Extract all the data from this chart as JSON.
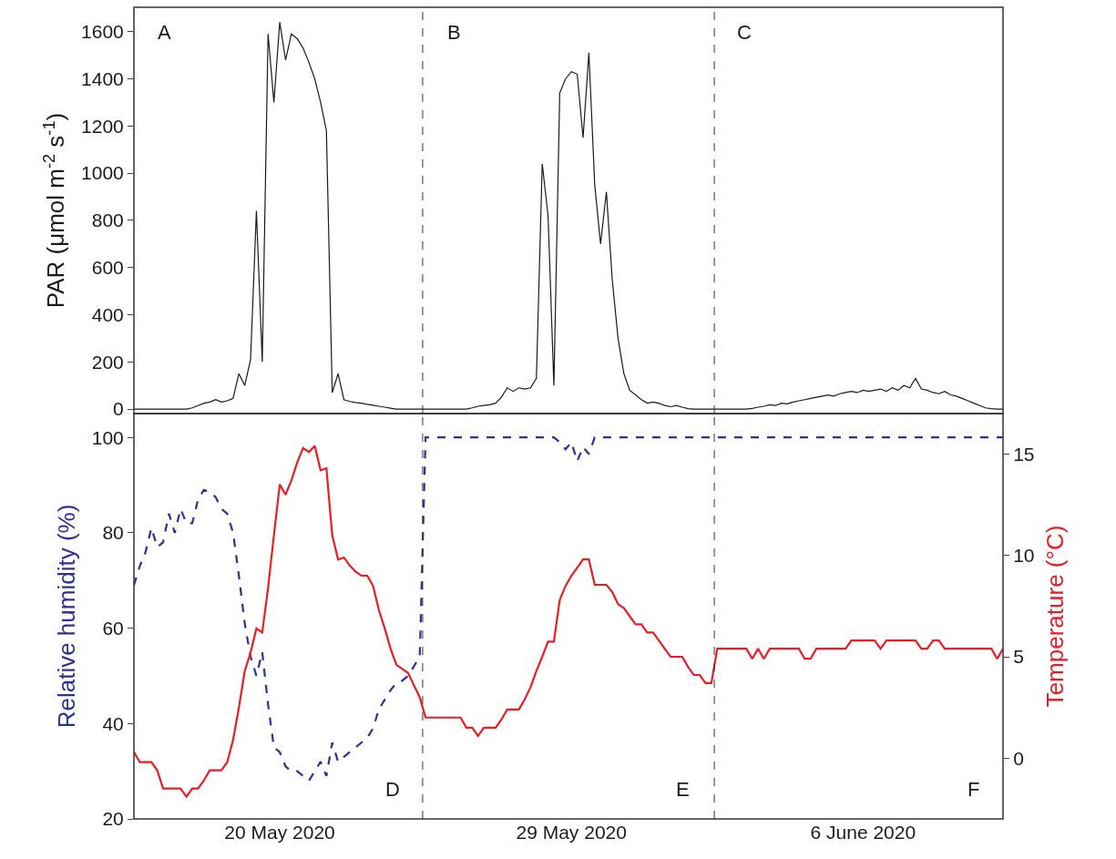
{
  "chart_data": [
    {
      "type": "line",
      "ylabel": "PAR (μmol m$^{-2}$ s$^{-1}$)",
      "annotations": [
        "A",
        "B",
        "C"
      ],
      "tick_labels": "y",
      "ylim": [
        -19,
        1703
      ],
      "yticks": [
        0,
        200,
        400,
        600,
        800,
        1000,
        1200,
        1400,
        1600
      ],
      "categories": [
        null,
        null,
        null,
        null,
        null,
        null,
        null,
        null,
        null,
        null,
        null,
        null,
        null,
        null,
        null,
        null,
        null,
        null,
        null,
        null,
        null,
        null,
        null,
        null,
        null,
        null,
        null,
        null,
        null,
        null,
        null,
        null,
        null,
        null,
        null,
        null,
        null,
        null,
        null,
        null,
        null,
        null,
        null,
        null,
        null,
        null,
        null,
        null,
        null,
        null,
        null,
        null,
        null,
        null,
        null,
        null,
        null,
        null,
        null,
        null,
        null,
        null,
        null,
        null,
        null,
        null,
        null,
        null,
        null,
        null,
        null,
        null,
        null,
        null,
        null,
        null,
        null,
        null,
        null,
        null,
        null,
        null,
        null,
        null,
        null,
        null,
        null,
        null,
        null,
        null,
        null,
        null,
        null,
        null,
        null,
        null,
        null,
        null,
        null,
        null,
        null,
        null,
        null,
        null,
        null,
        null,
        null,
        null,
        null,
        null,
        null,
        null,
        null,
        null,
        null,
        null,
        null,
        null,
        null,
        null,
        null,
        null,
        null,
        null,
        null,
        null,
        null,
        null,
        null,
        null,
        null,
        null,
        null,
        null,
        null,
        null,
        null,
        null,
        null,
        null,
        null,
        null,
        null,
        null,
        null,
        null,
        null,
        null,
        null,
        null
      ],
      "series": [
        {
          "color": "#1a1a1a",
          "line_style": "solid",
          "values": [
            0,
            0,
            0,
            0,
            0,
            0,
            0,
            0,
            0,
            0,
            5,
            15,
            25,
            30,
            40,
            30,
            35,
            45,
            150,
            100,
            210,
            840,
            200,
            1590,
            1300,
            1640,
            1480,
            1590,
            1570,
            1530,
            1470,
            1400,
            1300,
            1180,
            70,
            150,
            40,
            32,
            28,
            25,
            20,
            16,
            12,
            8,
            4,
            0,
            0,
            0,
            0,
            0,
            0,
            0,
            0,
            0,
            0,
            0,
            0,
            0,
            5,
            12,
            15,
            18,
            25,
            50,
            90,
            75,
            90,
            85,
            90,
            130,
            1040,
            820,
            100,
            1340,
            1400,
            1430,
            1420,
            1150,
            1510,
            950,
            700,
            920,
            550,
            300,
            150,
            80,
            60,
            40,
            25,
            30,
            25,
            15,
            10,
            15,
            8,
            2,
            0,
            0,
            0,
            0,
            0,
            0,
            0,
            0,
            0,
            0,
            3,
            8,
            12,
            18,
            15,
            25,
            22,
            30,
            35,
            40,
            45,
            50,
            55,
            60,
            55,
            65,
            70,
            75,
            70,
            80,
            75,
            80,
            85,
            75,
            90,
            80,
            100,
            90,
            130,
            85,
            80,
            70,
            65,
            75,
            60,
            55,
            45,
            35,
            25,
            15,
            5,
            2,
            0,
            0
          ]
        }
      ]
    },
    {
      "type": "line",
      "ylabel": "Relative humidity (%)",
      "y2label": "Temperature (°C)",
      "annotations": [
        "D",
        "E",
        "F"
      ],
      "ylim": [
        20,
        105
      ],
      "yticks": [
        20,
        40,
        60,
        80,
        100
      ],
      "y2lim": [
        -3,
        17
      ],
      "y2ticks": [
        0,
        5,
        10,
        15
      ],
      "categories": [
        null,
        null,
        null,
        null,
        null,
        null,
        null,
        null,
        null,
        null,
        null,
        null,
        null,
        null,
        null,
        null,
        null,
        null,
        null,
        null,
        null,
        null,
        null,
        null,
        null,
        "20 May 2020",
        null,
        null,
        null,
        null,
        null,
        null,
        null,
        null,
        null,
        null,
        null,
        null,
        null,
        null,
        null,
        null,
        null,
        null,
        null,
        null,
        null,
        null,
        null,
        null,
        null,
        null,
        null,
        null,
        null,
        null,
        null,
        null,
        null,
        null,
        null,
        null,
        null,
        null,
        null,
        null,
        null,
        null,
        null,
        null,
        null,
        null,
        null,
        null,
        null,
        "29 May 2020",
        null,
        null,
        null,
        null,
        null,
        null,
        null,
        null,
        null,
        null,
        null,
        null,
        null,
        null,
        null,
        null,
        null,
        null,
        null,
        null,
        null,
        null,
        null,
        null,
        null,
        null,
        null,
        null,
        null,
        null,
        null,
        null,
        null,
        null,
        null,
        null,
        null,
        null,
        null,
        null,
        null,
        null,
        null,
        null,
        null,
        null,
        null,
        null,
        null,
        "6 June 2020",
        null,
        null,
        null,
        null,
        null,
        null,
        null,
        null,
        null,
        null,
        null,
        null,
        null,
        null,
        null,
        null,
        null,
        null,
        null,
        null,
        null,
        null,
        null,
        null
      ],
      "series": [
        {
          "color": "#2e3192",
          "line_style": "dashed",
          "values": [
            69,
            73,
            76,
            81,
            77,
            78,
            84,
            80,
            85,
            82,
            82,
            87,
            89,
            88.5,
            87.5,
            85,
            84,
            80,
            71,
            61,
            54,
            50,
            55,
            44,
            35,
            34,
            31,
            30,
            30,
            29,
            28,
            30,
            32,
            29,
            36,
            32,
            33,
            34,
            35,
            36,
            37,
            39,
            43,
            45,
            47,
            48.5,
            49,
            50,
            52,
            54,
            100,
            100,
            100,
            100,
            100,
            100,
            100,
            100,
            100,
            100,
            100,
            100,
            100,
            100,
            100,
            100,
            100,
            100,
            100,
            100,
            100,
            100,
            100,
            99,
            97.5,
            99,
            95,
            98,
            96.5,
            100,
            100,
            100,
            100,
            100,
            100,
            100,
            100,
            100,
            100,
            100,
            100,
            100,
            100,
            100,
            100,
            100,
            100,
            100,
            100,
            100,
            100,
            100,
            100,
            100,
            100,
            100,
            100,
            100,
            100,
            100,
            100,
            100,
            100,
            100,
            100,
            100,
            100,
            100,
            100,
            100,
            100,
            100,
            100,
            100,
            100,
            100,
            100,
            100,
            100,
            100,
            100,
            100,
            100,
            100,
            100,
            100,
            100,
            100,
            100,
            100,
            100,
            100,
            100,
            100,
            100,
            100,
            100,
            100,
            100,
            100
          ]
        },
        {
          "color": "#ed1c24",
          "line_style": "solid",
          "axis": "y2",
          "values": [
            0.3,
            -0.2,
            -0.2,
            -0.2,
            -0.6,
            -1.5,
            -1.5,
            -1.5,
            -1.5,
            -1.9,
            -1.5,
            -1.5,
            -1.1,
            -0.6,
            -0.6,
            -0.6,
            -0.2,
            0.9,
            2.5,
            4.3,
            5.2,
            6.4,
            6.2,
            8.4,
            11,
            13.5,
            13,
            13.7,
            14.6,
            15.3,
            15.1,
            15.4,
            14.2,
            14.3,
            11,
            9.8,
            9.9,
            9.5,
            9.2,
            9,
            9,
            8.5,
            7.3,
            6.4,
            5.4,
            4.6,
            4.4,
            4.2,
            3.6,
            3,
            2,
            2,
            2,
            2,
            2,
            2,
            2,
            1.5,
            1.5,
            1.1,
            1.5,
            1.5,
            1.5,
            1.9,
            2.4,
            2.4,
            2.4,
            2.9,
            3.5,
            4.3,
            5,
            5.75,
            5.75,
            7.8,
            8.5,
            9,
            9.4,
            9.8,
            9.8,
            8.55,
            8.55,
            8.55,
            8.2,
            7.6,
            7.4,
            7,
            6.6,
            6.6,
            6.2,
            6.2,
            5.8,
            5.4,
            5,
            5,
            5,
            4.5,
            4.1,
            4.1,
            3.7,
            3.7,
            5.4,
            5.4,
            5.4,
            5.4,
            5.4,
            5.4,
            4.9,
            5.4,
            4.9,
            5.4,
            5.4,
            5.4,
            5.4,
            5.4,
            5.4,
            4.9,
            4.9,
            5.4,
            5.4,
            5.4,
            5.4,
            5.4,
            5.4,
            5.8,
            5.8,
            5.8,
            5.8,
            5.8,
            5.4,
            5.8,
            5.8,
            5.8,
            5.8,
            5.8,
            5.8,
            5.4,
            5.4,
            5.8,
            5.8,
            5.4,
            5.4,
            5.4,
            5.4,
            5.4,
            5.4,
            5.4,
            5.4,
            5.4,
            4.9,
            5.4
          ]
        }
      ]
    }
  ]
}
